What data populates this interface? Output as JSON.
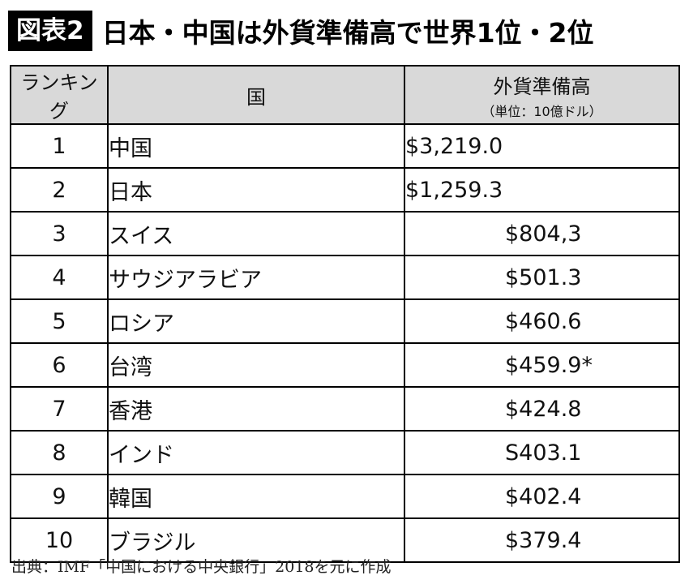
{
  "figure": {
    "badge": "図表2",
    "title": "日本・中国は外貨準備高で世界1位・2位"
  },
  "table": {
    "headers": {
      "rank": "ランキング",
      "country": "国",
      "reserve": "外貨準備高",
      "reserve_unit": "（単位：10億ドル）"
    },
    "rows": [
      {
        "rank": "1",
        "country": "中国",
        "reserve": "$3,219.0"
      },
      {
        "rank": "2",
        "country": "日本",
        "reserve": "$1,259.3"
      },
      {
        "rank": "3",
        "country": "スイス",
        "reserve": "$804,3"
      },
      {
        "rank": "4",
        "country": "サウジアラビア",
        "reserve": "$501.3"
      },
      {
        "rank": "5",
        "country": "ロシア",
        "reserve": "$460.6"
      },
      {
        "rank": "6",
        "country": "台湾",
        "reserve": "$459.9*"
      },
      {
        "rank": "7",
        "country": "香港",
        "reserve": "$424.8"
      },
      {
        "rank": "8",
        "country": "インド",
        "reserve": "S403.1"
      },
      {
        "rank": "9",
        "country": "韓国",
        "reserve": "$402.4"
      },
      {
        "rank": "10",
        "country": "ブラジル",
        "reserve": "$379.4"
      }
    ]
  },
  "footer": {
    "source": "出典：IMF「中国における中央銀行」2018を元に作成"
  }
}
